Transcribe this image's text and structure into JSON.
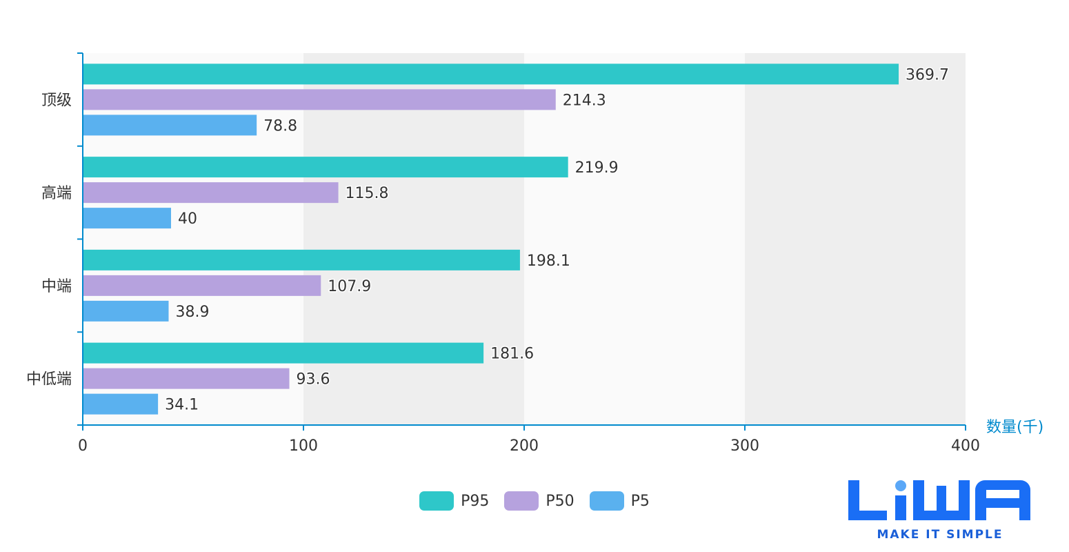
{
  "chart_data": {
    "type": "bar",
    "orientation": "horizontal",
    "categories": [
      "顶级",
      "高端",
      "中端",
      "中低端"
    ],
    "series": [
      {
        "name": "P95",
        "values": [
          369.7,
          219.9,
          198.1,
          181.6
        ],
        "color": "#2ec7c9"
      },
      {
        "name": "P50",
        "values": [
          214.3,
          115.8,
          107.9,
          93.6
        ],
        "color": "#b6a2de"
      },
      {
        "name": "P5",
        "values": [
          78.8,
          40,
          38.9,
          34.1
        ],
        "color": "#5ab1ef"
      }
    ],
    "xlabel": "数量(千)",
    "xlim": [
      0,
      400
    ],
    "xticks": [
      0,
      100,
      200,
      300,
      400
    ],
    "legend_position": "bottom-center",
    "split_area_colors": [
      "#fafafa",
      "#eeeeee"
    ],
    "axis_color": "#008acd"
  },
  "logo": {
    "icon": "liwa-logo",
    "text": "LiWA",
    "tagline": "MAKE IT SIMPLE",
    "color": "#1a6ef5"
  }
}
